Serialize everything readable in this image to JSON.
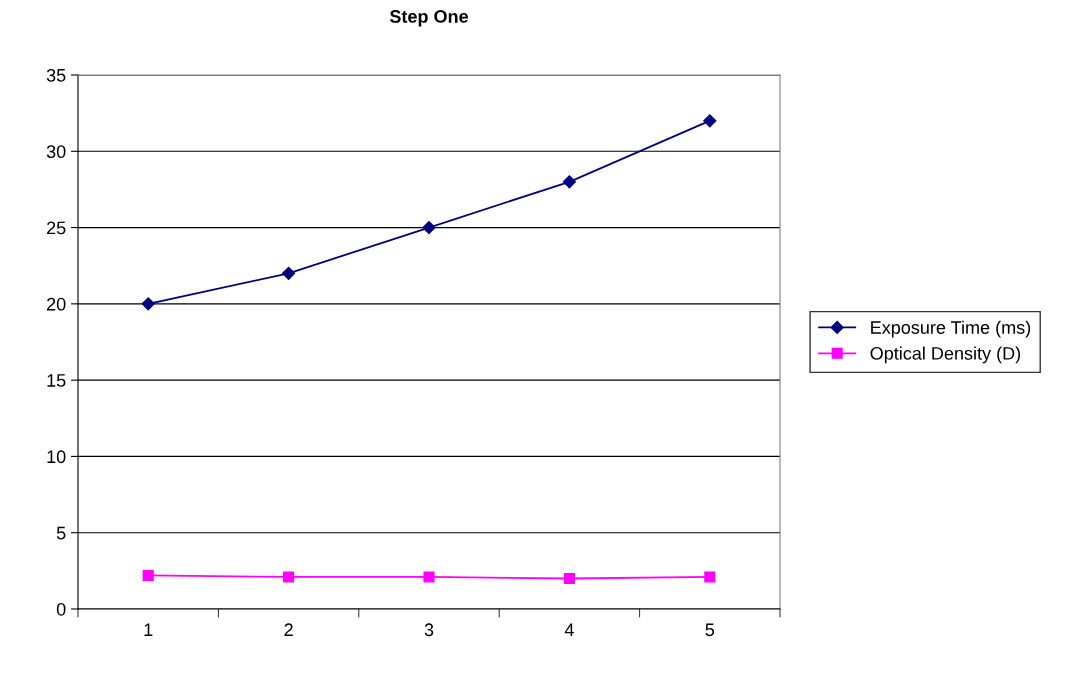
{
  "chart_data": {
    "type": "line",
    "title": "Step One",
    "categories": [
      "1",
      "2",
      "3",
      "4",
      "5"
    ],
    "series": [
      {
        "name": "Exposure Time (ms)",
        "color": "#000080",
        "marker": "diamond",
        "values": [
          20,
          22,
          25,
          28,
          32
        ]
      },
      {
        "name": "Optical Density (D)",
        "color": "#ff00ff",
        "marker": "square",
        "values": [
          2.2,
          2.1,
          2.1,
          2.0,
          2.1
        ]
      }
    ],
    "ylim": [
      0,
      35
    ],
    "yticks": [
      0,
      5,
      10,
      15,
      20,
      25,
      30,
      35
    ],
    "grid": "y",
    "legend": "right",
    "line_style": "solid"
  }
}
